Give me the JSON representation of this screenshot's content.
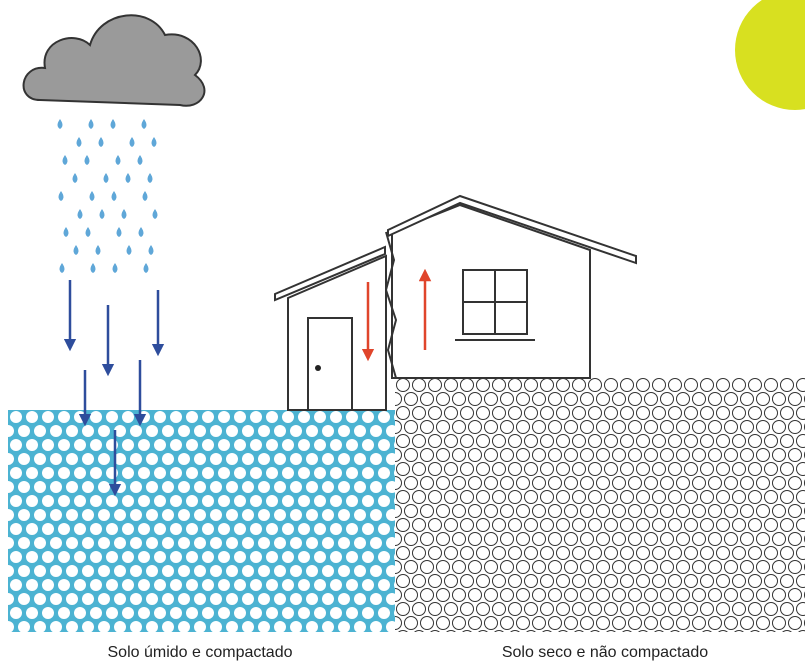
{
  "captions": {
    "left": "Solo úmido e compactado",
    "right": "Solo seco e não compactado"
  }
}
